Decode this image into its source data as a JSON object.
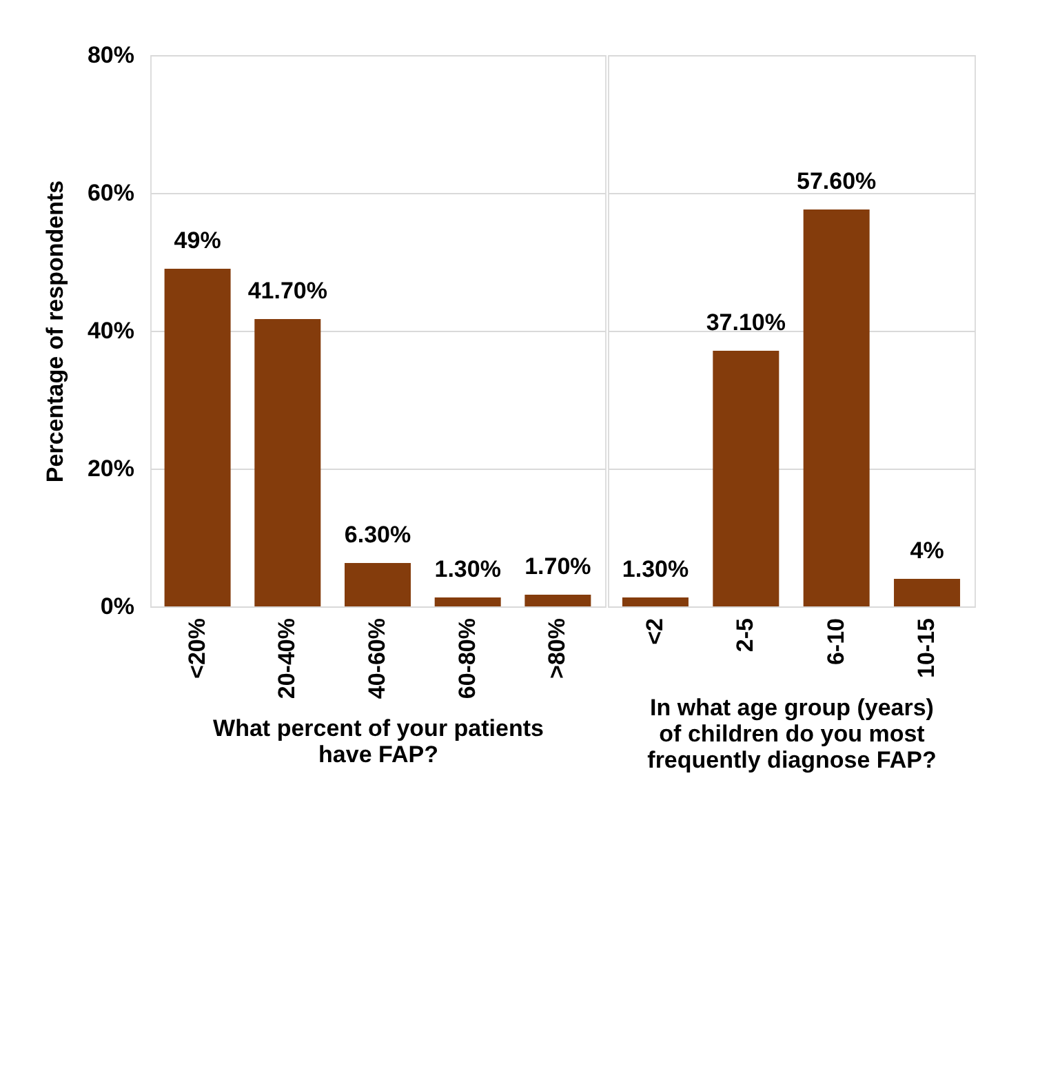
{
  "chart_data": [
    {
      "type": "bar",
      "xlabel": "What percent of your patients have FAP?",
      "ylabel": "Percentage of respondents",
      "categories": [
        "<20%",
        "20-40%",
        "40-60%",
        "60-80%",
        ">80%"
      ],
      "values": [
        49,
        41.7,
        6.3,
        1.3,
        1.7
      ],
      "value_labels": [
        "49%",
        "41.70%",
        "6.30%",
        "1.30%",
        "1.70%"
      ],
      "color": "#843c0c",
      "ylim": [
        0,
        80
      ],
      "yticks": [
        {
          "value": 0,
          "label": "0%"
        },
        {
          "value": 20,
          "label": "20%"
        },
        {
          "value": 40,
          "label": "40%"
        },
        {
          "value": 60,
          "label": "60%"
        },
        {
          "value": 80,
          "label": "80%"
        }
      ],
      "grid": "y"
    },
    {
      "type": "bar",
      "xlabel": "In what age group (years) of children do you most frequently diagnose FAP?",
      "categories": [
        "<2",
        "2-5",
        "6-10",
        "10-15"
      ],
      "values": [
        1.3,
        37.1,
        57.6,
        4
      ],
      "value_labels": [
        "1.30%",
        "37.10%",
        "57.60%",
        "4%"
      ],
      "color": "#843c0c",
      "ylim": [
        0,
        80
      ],
      "yticks": [
        0,
        20,
        40,
        60,
        80
      ],
      "grid": "y",
      "tick_labels": "x"
    }
  ]
}
